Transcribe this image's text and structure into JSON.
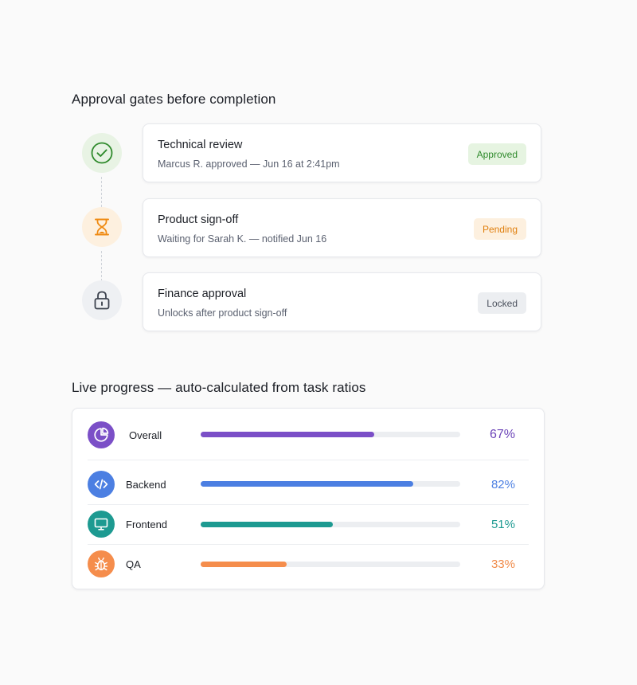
{
  "gates": {
    "title": "Approval gates before completion",
    "items": [
      {
        "title": "Technical review",
        "subtitle": "Marcus R. approved — Jun 16 at 2:41pm",
        "badge": "Approved",
        "icon": "check-circle-icon",
        "colors": {
          "icon_bg": "#e8f3e4",
          "icon_fg": "#2f8a2c",
          "badge_bg": "#e6f4e1",
          "badge_fg": "#2f8a2c"
        }
      },
      {
        "title": "Product sign-off",
        "subtitle": "Waiting for Sarah K. — notified Jun 16",
        "badge": "Pending",
        "icon": "hourglass-icon",
        "colors": {
          "icon_bg": "#fdf0df",
          "icon_fg": "#ef8a12",
          "badge_bg": "#fdf0df",
          "badge_fg": "#e07f0e"
        }
      },
      {
        "title": "Finance approval",
        "subtitle": "Unlocks after product sign-off",
        "badge": "Locked",
        "icon": "lock-icon",
        "colors": {
          "icon_bg": "#eef0f3",
          "icon_fg": "#3d434f",
          "badge_bg": "#eceef1",
          "badge_fg": "#4a505c"
        }
      }
    ]
  },
  "progress": {
    "title": "Live progress — auto-calculated from task ratios",
    "track_color": "#eceef1",
    "rows": [
      {
        "label": "Overall",
        "value": 67,
        "value_label": "67%",
        "icon": "pie-chart-icon",
        "color": "#7b4fc7",
        "text_color": "#6c44b8"
      },
      {
        "label": "Backend",
        "value": 82,
        "value_label": "82%",
        "icon": "code-icon",
        "color": "#4c7fe2",
        "text_color": "#4c7fe2"
      },
      {
        "label": "Frontend",
        "value": 51,
        "value_label": "51%",
        "icon": "monitor-icon",
        "color": "#1d9a91",
        "text_color": "#1d9a91"
      },
      {
        "label": "QA",
        "value": 33,
        "value_label": "33%",
        "icon": "bug-icon",
        "color": "#f58d4c",
        "text_color": "#f08a48"
      }
    ]
  }
}
